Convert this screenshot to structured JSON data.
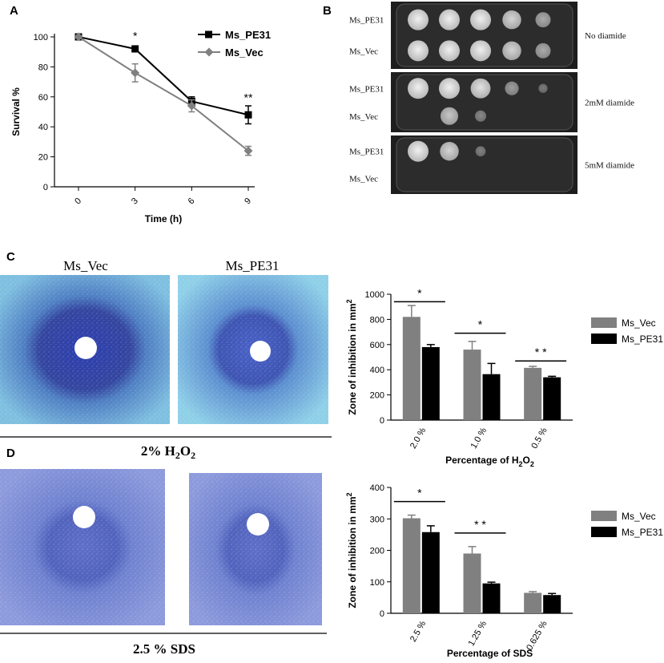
{
  "panels": {
    "a": {
      "letter": "A"
    },
    "b": {
      "letter": "B",
      "strains": [
        "Ms_PE31",
        "Ms_Vec"
      ],
      "conditions": [
        "No diamide",
        "2mM diamide",
        "5mM diamide"
      ],
      "growth_levels": [
        [
          [
            1,
            1,
            1,
            0.8,
            0.5
          ],
          [
            1,
            1,
            1,
            0.8,
            0.5
          ]
        ],
        [
          [
            1,
            1,
            0.9,
            0.4,
            0.15
          ],
          [
            0,
            0.7,
            0.25,
            0,
            0
          ]
        ],
        [
          [
            1,
            0.8,
            0.2,
            0,
            0
          ],
          [
            0,
            0,
            0,
            0,
            0
          ]
        ]
      ]
    },
    "c": {
      "letter": "C",
      "plate_labels": [
        "Ms_Vec",
        "Ms_PE31"
      ],
      "caption_prefix": "2% H",
      "caption_sub1": "2",
      "caption_mid": "O",
      "caption_sub2": "2"
    },
    "d": {
      "letter": "D",
      "caption": "2.5 % SDS"
    }
  },
  "chart_data": [
    {
      "type": "line",
      "panel": "A",
      "xlabel": "Time (h)",
      "ylabel": "Survival %",
      "x": [
        0,
        3,
        6,
        9
      ],
      "xlim": [
        0,
        9
      ],
      "ylim": [
        0,
        100
      ],
      "yticks": [
        0,
        20,
        40,
        60,
        80,
        100
      ],
      "grid": false,
      "legend_position": "top-right",
      "series": [
        {
          "name": "Ms_PE31",
          "values": [
            100,
            92,
            57,
            48
          ],
          "errors": [
            0,
            2,
            3,
            6
          ],
          "color": "#000000",
          "marker": "square"
        },
        {
          "name": "Ms_Vec",
          "values": [
            100,
            76,
            54,
            24
          ],
          "errors": [
            0,
            6,
            4,
            3
          ],
          "color": "#808080",
          "marker": "diamond"
        }
      ],
      "annotations": [
        {
          "x": 3,
          "y": 98,
          "text": "*"
        },
        {
          "x": 9,
          "y": 57,
          "text": "**"
        }
      ]
    },
    {
      "type": "bar",
      "panel": "C",
      "xlabel_prefix": "Percentage of H",
      "xlabel_sub1": "2",
      "xlabel_mid": "O",
      "xlabel_sub2": "2",
      "ylabel_prefix": "Zone of inhibition in mm",
      "ylabel_sup": "2",
      "categories": [
        "2.0 %",
        "1.0 %",
        "0.5 %"
      ],
      "ylim": [
        0,
        1000
      ],
      "yticks": [
        0,
        200,
        400,
        600,
        800,
        1000
      ],
      "legend_position": "right",
      "series": [
        {
          "name": "Ms_Vec",
          "values": [
            820,
            560,
            415
          ],
          "errors": [
            90,
            65,
            12
          ],
          "color": "#808080"
        },
        {
          "name": "Ms_PE31",
          "values": [
            580,
            365,
            340
          ],
          "errors": [
            20,
            85,
            8
          ],
          "color": "#000000"
        }
      ],
      "significance": [
        "*",
        "*",
        "* *"
      ],
      "significance_y": [
        940,
        690,
        470
      ]
    },
    {
      "type": "bar",
      "panel": "D",
      "xlabel": "Percentage of SDS",
      "ylabel_prefix": "Zone of inhibition in mm",
      "ylabel_sup": "2",
      "categories": [
        "2.5 %",
        "1.25 %",
        "0.625 %"
      ],
      "ylim": [
        0,
        400
      ],
      "yticks": [
        0,
        100,
        200,
        300,
        400
      ],
      "legend_position": "right",
      "series": [
        {
          "name": "Ms_Vec",
          "values": [
            302,
            190,
            65
          ],
          "errors": [
            10,
            22,
            4
          ],
          "color": "#808080"
        },
        {
          "name": "Ms_PE31",
          "values": [
            258,
            95,
            58
          ],
          "errors": [
            20,
            4,
            5
          ],
          "color": "#000000"
        }
      ],
      "significance": [
        "*",
        "* *"
      ],
      "significance_y": [
        355,
        255
      ]
    }
  ]
}
